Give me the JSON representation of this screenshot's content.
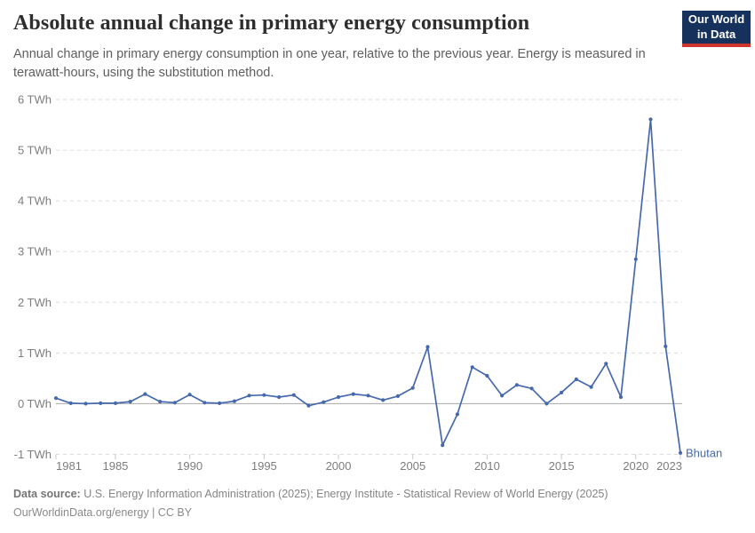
{
  "header": {
    "title": "Absolute annual change in primary energy consumption",
    "subtitle": "Annual change in primary energy consumption in one year, relative to the previous year. Energy is measured in terawatt-hours, using the substitution method.",
    "logo": {
      "line1": "Our World",
      "line2": "in Data",
      "bg_color": "#16325c",
      "accent_color": "#ce352c"
    }
  },
  "chart_data": {
    "type": "line",
    "title": "Absolute annual change in primary energy consumption",
    "unit": " TWh",
    "xlim": [
      1981,
      2023
    ],
    "ylim": [
      -1,
      6
    ],
    "grid": "dashed-horizontal",
    "zero_line": true,
    "legend_position": "end-of-line-label",
    "x_ticks": [
      1981,
      1985,
      1990,
      1995,
      2000,
      2005,
      2010,
      2015,
      2020,
      2023
    ],
    "y_ticks": [
      -1,
      0,
      1,
      2,
      3,
      4,
      5,
      6
    ],
    "series": [
      {
        "name": "Bhutan",
        "color": "#4669ae",
        "x": [
          1981,
          1982,
          1983,
          1984,
          1985,
          1986,
          1987,
          1988,
          1989,
          1990,
          1991,
          1992,
          1993,
          1994,
          1995,
          1996,
          1997,
          1998,
          1999,
          2000,
          2001,
          2002,
          2003,
          2004,
          2005,
          2006,
          2007,
          2008,
          2009,
          2010,
          2011,
          2012,
          2013,
          2014,
          2015,
          2016,
          2017,
          2018,
          2019,
          2020,
          2021,
          2022,
          2023
        ],
        "values": [
          0.11,
          0.01,
          0.0,
          0.01,
          0.01,
          0.04,
          0.19,
          0.04,
          0.02,
          0.18,
          0.02,
          0.01,
          0.05,
          0.16,
          0.17,
          0.13,
          0.17,
          -0.04,
          0.03,
          0.13,
          0.19,
          0.16,
          0.07,
          0.15,
          0.31,
          1.12,
          -0.82,
          -0.21,
          0.72,
          0.55,
          0.16,
          0.37,
          0.3,
          0.0,
          0.22,
          0.48,
          0.33,
          0.79,
          0.13,
          2.85,
          5.61,
          1.13,
          -0.97
        ]
      }
    ],
    "colors": {
      "gridline": "#dbdbdb",
      "zero_line": "#a8a8a8",
      "tick_label": "#7d7d7d",
      "tick_mark": "#c8c8c8"
    }
  },
  "footer": {
    "source_label": "Data source:",
    "source_text": "U.S. Energy Information Administration (2025); Energy Institute - Statistical Review of World Energy (2025)",
    "link_text": "OurWorldinData.org/energy | CC BY"
  }
}
